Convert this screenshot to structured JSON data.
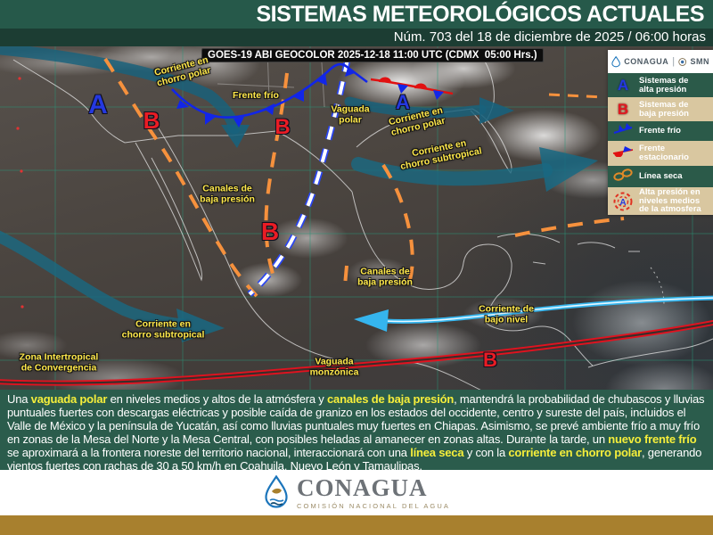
{
  "header": {
    "title": "SISTEMAS METEOROLÓGICOS ACTUALES",
    "subtitle": "Núm. 703 del 18 de diciembre de 2025 / 06:00 horas"
  },
  "map": {
    "caption": "GOES-19 ABI GEOCOLOR 2025-12-18 11:00 UTC (CDMX  05:00 Hrs.)",
    "labels": [
      {
        "text": "Corriente en\nchorro polar"
      },
      {
        "text": "Frente frío"
      },
      {
        "text": "Vaguada\npolar"
      },
      {
        "text": "Corriente en\nchorro polar"
      },
      {
        "text": "Corriente en\nchorro subtropical"
      },
      {
        "text": "Canales de\nbaja presión"
      },
      {
        "text": "Canales de\nbaja presión"
      },
      {
        "text": "Corriente en\nchorro subtropical"
      },
      {
        "text": "Zona Intertropical\nde Convergencia"
      },
      {
        "text": "Corriente de\nbajo nivel"
      },
      {
        "text": "Vaguada\nmonzónica"
      }
    ],
    "symbols": [
      {
        "letter": "A"
      },
      {
        "letter": "A"
      },
      {
        "letter": "B"
      },
      {
        "letter": "B"
      },
      {
        "letter": "B"
      },
      {
        "letter": "B"
      }
    ]
  },
  "legend": {
    "logos": {
      "conagua": "CONAGUA",
      "smn": "SMN"
    },
    "items": [
      {
        "icon_letter": "A",
        "label": "Sistemas de\nalta presión"
      },
      {
        "icon_letter": "B",
        "label": "Sistemas de\nbaja presión"
      },
      {
        "label": "Frente frío"
      },
      {
        "label": "Frente\nestacionario"
      },
      {
        "label": "Línea seca"
      },
      {
        "icon_letter": "A",
        "label": "Alta presión en\nniveles medios\nde la atmosfera"
      }
    ]
  },
  "summary": {
    "segments": [
      {
        "text": "Una ",
        "highlight": false
      },
      {
        "text": "vaguada polar",
        "highlight": true
      },
      {
        "text": " en niveles medios y altos de la atmósfera y ",
        "highlight": false
      },
      {
        "text": "canales de baja presión",
        "highlight": true
      },
      {
        "text": ", mantendrá la probabilidad de chubascos y lluvias puntuales fuertes con descargas eléctricas y posible caída de granizo en los estados del occidente, centro y sureste del país, incluidos el Valle de México y la península de Yucatán, así como lluvias puntuales muy fuertes en Chiapas. Asimismo, se prevé ambiente frío a muy frío en zonas de la Mesa del Norte y la Mesa Central, con posibles heladas al amanecer en zonas altas. Durante la tarde, un ",
        "highlight": false
      },
      {
        "text": "nuevo frente frío",
        "highlight": true
      },
      {
        "text": " se aproximará a la frontera noreste del territorio nacional, interaccionará con una ",
        "highlight": false
      },
      {
        "text": "línea seca",
        "highlight": true
      },
      {
        "text": " y con la ",
        "highlight": false
      },
      {
        "text": "corriente en chorro polar",
        "highlight": true
      },
      {
        "text": ", generando vientos fuertes con rachas de 30 a 50 km/h en Coahuila, Nuevo León y Tamaulipas.",
        "highlight": false
      }
    ]
  },
  "footer": {
    "brand": "CONAGUA",
    "tagline": "COMISIÓN NACIONAL DEL AGUA"
  },
  "colors": {
    "header_green": "#26594a",
    "subheader_green": "#1c3d33",
    "panel_green": "#2b5c4c",
    "legend_tan": "#d9c7a0",
    "highlight_yellow": "#f5ee3b",
    "label_yellow": "#ffe84a",
    "cold_front_blue": "#1226e8",
    "warm_red": "#e1121f",
    "dry_line_orange": "#f6913d",
    "jet_teal": "#17627d",
    "low_level_cyan": "#35b5ee",
    "gold_band": "#a8802e"
  }
}
